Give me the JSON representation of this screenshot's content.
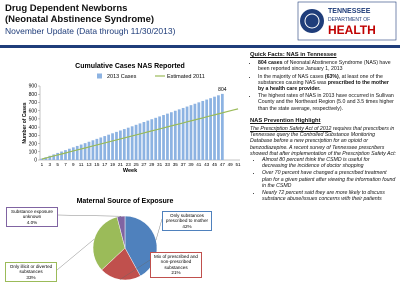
{
  "header": {
    "title": "Drug Dependent Newborns",
    "subtitle": "(Neonatal Abstinence Syndrome)",
    "update": "November Update (Data through 11/30/2013)",
    "logo": {
      "line1": "TENNESSEE",
      "line2": "DEPARTMENT OF",
      "line3": "HEALTH"
    }
  },
  "chart_data": [
    {
      "type": "bar",
      "title": "Cumulative Cases NAS Reported",
      "x_label": "Week",
      "y_label": "Number of Cases",
      "categories": [
        1,
        null,
        3,
        null,
        5,
        null,
        7,
        null,
        9,
        null,
        11,
        null,
        13,
        null,
        15,
        null,
        17,
        null,
        19,
        null,
        21,
        null,
        23,
        null,
        25,
        null,
        27,
        null,
        29,
        null,
        31,
        null,
        33,
        null,
        35,
        null,
        37,
        null,
        39,
        null,
        41,
        null,
        43,
        null,
        45,
        null,
        47,
        null,
        49,
        null,
        51
      ],
      "series": [
        {
          "name": "2013 Cases",
          "color": "#8db3e2",
          "values": [
            17,
            34,
            51,
            68,
            86,
            103,
            120,
            137,
            154,
            171,
            188,
            205,
            222,
            240,
            257,
            274,
            291,
            308,
            325,
            342,
            359,
            376,
            393,
            410,
            428,
            445,
            462,
            479,
            496,
            513,
            530,
            547,
            564,
            581,
            599,
            616,
            633,
            650,
            667,
            684,
            701,
            718,
            735,
            752,
            770,
            787,
            804,
            null,
            null,
            null,
            null
          ]
        },
        {
          "name": "Estimated 2011",
          "type": "line",
          "color": "#9bbb59",
          "values": [
            12,
            24,
            37,
            49,
            61,
            73,
            85,
            98,
            110,
            122,
            134,
            146,
            159,
            171,
            183,
            195,
            207,
            220,
            232,
            244,
            256,
            268,
            281,
            293,
            305,
            317,
            329,
            342,
            354,
            366,
            378,
            390,
            403,
            415,
            427,
            439,
            451,
            464,
            476,
            488,
            500,
            512,
            525,
            537,
            549,
            561,
            573,
            586,
            598,
            610,
            622
          ]
        }
      ],
      "ylim": [
        0,
        900
      ],
      "yticks": [
        0,
        100,
        200,
        300,
        400,
        500,
        600,
        700,
        800,
        900
      ],
      "grid": false
    },
    {
      "type": "pie",
      "title": "Maternal Source of Exposure",
      "categories": [
        "Only substances prescribed to mother",
        "Mix of prescribed and non-prescribed substances",
        "Only illicit or diverted substances",
        "Substance exposure unknown"
      ],
      "values": [
        42,
        21,
        33,
        4.0
      ],
      "value_labels": [
        "42%",
        "21%",
        "33%",
        "4.0%"
      ],
      "colors": [
        "#4f81bd",
        "#c0504d",
        "#9bbb59",
        "#8064a2"
      ]
    }
  ],
  "quick_facts": {
    "heading": "Quick Facts:  NAS in Tennessee",
    "bullets": [
      [
        "804 cases",
        " of Neonatal Abstinence Syndrome (NAS) have been reported since January 1, 2013"
      ],
      [
        "In the majority of NAS cases ",
        "(63%)",
        ", at least one of the substances causing NAS was ",
        "prescribed to the mother by a health care provider."
      ],
      [
        "The highest rates of NAS in 2013 have occurred in Sullivan County and the Northeast Region (5.0 and 3.5 times higher than the state average, respectively)."
      ]
    ]
  },
  "prevention": {
    "heading": "NAS Prevention Highlight",
    "act": "The Prescription Safety Act of 2012",
    "text": " requires that prescribers in Tennessee query the Controlled Substance Monitoring Database before a new prescription for an opioid or benzodiazepine. A recent survey of Tennessee prescribers showed that after implementation of the Prescription Safety Act:",
    "bullets": [
      "Almost 80 percent think the CSMD is useful for decreasing the incidence of doctor shopping",
      "Over 70 percent have changed a prescribed treatment plan for a given patient after viewing the information found in the CSMD",
      "Nearly 72 percent said they are more likely to discuss substance abuse/issues concerns with their patients"
    ]
  }
}
